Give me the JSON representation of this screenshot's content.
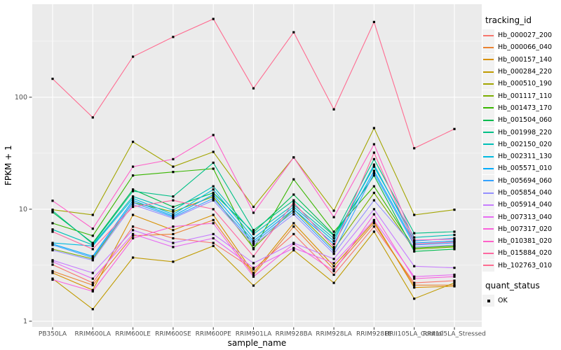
{
  "figure": {
    "background": "#FFFFFF",
    "panel_background": "#EBEBEB",
    "grid_color": "#FFFFFF",
    "tick_color": "#333333",
    "axis_text_color": "#4D4D4D",
    "axis_title_color": "#000000",
    "marker_color": "#000000",
    "legend_key_background": "#F2F2F2"
  },
  "chart_data": {
    "type": "line",
    "title": "",
    "xlabel": "sample_name",
    "ylabel": "FPKM + 1",
    "x_scale": "categorical",
    "y_scale": "log10",
    "ylim": [
      0.89,
      677
    ],
    "grid": "on",
    "y_major_ticks": [
      {
        "label": "1",
        "value": 1
      },
      {
        "label": "10",
        "value": 10
      },
      {
        "label": "100",
        "value": 100
      }
    ],
    "y_minor_ticks": [
      3.162,
      31.62,
      316.2
    ],
    "categories": [
      "PB350LA",
      "RRIM600LA",
      "RRIM600LE",
      "RRIM600SE",
      "RRIM600PE",
      "RRIM901LA",
      "RRIM928BA",
      "RRIM928LA",
      "RRIM928LE",
      "RRII105LA_Control",
      "RRII105LA_Stressed"
    ],
    "legend": {
      "title": "tracking_id",
      "position": "right"
    },
    "quant_legend": {
      "title": "quant_status",
      "items": [
        {
          "label": "OK",
          "marker": "black-square"
        }
      ]
    },
    "series": [
      {
        "name": "Hb_000027_200",
        "color": "#F8766D",
        "values": [
          3.2,
          2.2,
          7.0,
          5.5,
          5.0,
          2.9,
          6.0,
          2.6,
          7.0,
          2.2,
          2.3
        ]
      },
      {
        "name": "Hb_000066_040",
        "color": "#EA8331",
        "values": [
          2.8,
          2.1,
          5.8,
          6.0,
          8.0,
          2.6,
          7.0,
          2.9,
          7.5,
          2.1,
          2.1
        ]
      },
      {
        "name": "Hb_000157_140",
        "color": "#D89000",
        "values": [
          2.7,
          1.9,
          8.9,
          6.5,
          8.9,
          2.7,
          7.5,
          3.1,
          7.8,
          2.0,
          2.05
        ]
      },
      {
        "name": "Hb_000284_220",
        "color": "#C09B00",
        "values": [
          2.4,
          1.28,
          3.7,
          3.4,
          4.7,
          2.08,
          4.3,
          2.2,
          6.3,
          1.59,
          2.2
        ]
      },
      {
        "name": "Hb_000510_190",
        "color": "#A3A500",
        "values": [
          9.9,
          8.9,
          40,
          24,
          32.5,
          10.5,
          29,
          9.7,
          53,
          8.9,
          9.9
        ]
      },
      {
        "name": "Hb_001117_110",
        "color": "#7CAE00",
        "values": [
          4.4,
          3.6,
          11.5,
          9.5,
          13,
          4.5,
          10,
          4.4,
          14,
          4.4,
          4.6
        ]
      },
      {
        "name": "Hb_001473_170",
        "color": "#39B600",
        "values": [
          7.5,
          5.8,
          20,
          21.5,
          23,
          4.4,
          18.5,
          6.3,
          16,
          4.5,
          4.7
        ]
      },
      {
        "name": "Hb_001504_060",
        "color": "#00BB4E",
        "values": [
          9.4,
          5.0,
          15,
          10.5,
          14,
          6.2,
          13.5,
          5.9,
          20,
          4.2,
          4.4
        ]
      },
      {
        "name": "Hb_001998_220",
        "color": "#00C087",
        "values": [
          9.7,
          4.9,
          14.5,
          13,
          26,
          6.5,
          12,
          5.8,
          28,
          6.1,
          6.3
        ]
      },
      {
        "name": "Hb_002150_020",
        "color": "#00C0B8",
        "values": [
          6.6,
          4.8,
          13,
          9.8,
          16,
          6.0,
          11,
          5.5,
          24,
          5.6,
          5.9
        ]
      },
      {
        "name": "Hb_002311_130",
        "color": "#00BAE0",
        "values": [
          5.0,
          4.7,
          12.5,
          9.0,
          15,
          5.5,
          10.5,
          5.2,
          25,
          5.2,
          5.5
        ]
      },
      {
        "name": "Hb_005571_010",
        "color": "#00ACFC",
        "values": [
          4.9,
          3.8,
          12,
          8.7,
          13.5,
          5.2,
          10,
          4.9,
          22,
          5.0,
          5.2
        ]
      },
      {
        "name": "Hb_005694_060",
        "color": "#35A2FF",
        "values": [
          4.8,
          3.7,
          11.5,
          8.5,
          12.5,
          5.0,
          9.5,
          4.2,
          21,
          4.8,
          5.0
        ]
      },
      {
        "name": "Hb_005854_040",
        "color": "#9590FF",
        "values": [
          4.3,
          3.5,
          11,
          8.3,
          12,
          4.8,
          9.0,
          4.0,
          12,
          4.6,
          4.8
        ]
      },
      {
        "name": "Hb_005914_040",
        "color": "#C77CFF",
        "values": [
          3.5,
          2.7,
          6.5,
          5.0,
          6.0,
          3.3,
          5.0,
          3.6,
          10,
          3.1,
          3.0
        ]
      },
      {
        "name": "Hb_007313_040",
        "color": "#E76BF3",
        "values": [
          3.4,
          2.4,
          6.0,
          4.6,
          5.5,
          3.0,
          4.5,
          3.3,
          8.0,
          2.5,
          2.6
        ]
      },
      {
        "name": "Hb_007317_020",
        "color": "#FA62DB",
        "values": [
          2.35,
          1.85,
          5.5,
          7.0,
          7.5,
          2.5,
          4.9,
          2.8,
          9.0,
          2.4,
          2.5
        ]
      },
      {
        "name": "Hb_010381_020",
        "color": "#FF61C9",
        "values": [
          11.9,
          6.7,
          24,
          28,
          46,
          9.3,
          29,
          8.5,
          38,
          5.3,
          5.4
        ]
      },
      {
        "name": "Hb_015884_020",
        "color": "#FF68A1",
        "values": [
          6.3,
          4.4,
          10.5,
          12,
          10,
          3.8,
          11.5,
          4.6,
          32,
          4.9,
          5.1
        ]
      },
      {
        "name": "Hb_102763_010",
        "color": "#FF6C91",
        "values": [
          146,
          66,
          230,
          345,
          500,
          120,
          380,
          78,
          470,
          35,
          52
        ]
      }
    ]
  }
}
